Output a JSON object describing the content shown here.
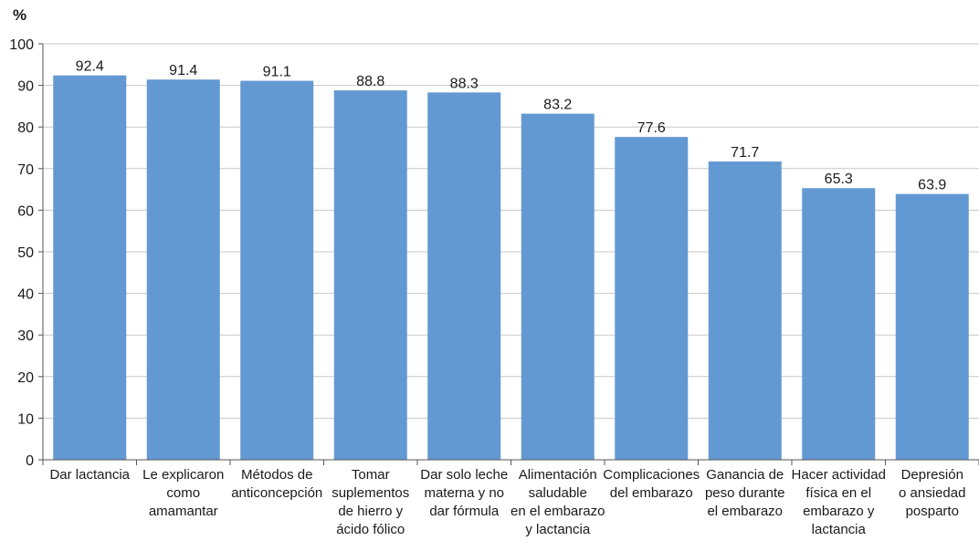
{
  "chart_data": {
    "type": "bar",
    "ylabel": "%",
    "ylim": [
      0,
      100
    ],
    "yticks": [
      0,
      10,
      20,
      30,
      40,
      50,
      60,
      70,
      80,
      90,
      100
    ],
    "grid": true,
    "bar_color": "#6399D2",
    "categories": [
      [
        "Dar lactancia"
      ],
      [
        "Le explicaron",
        "como",
        "amamantar"
      ],
      [
        "Métodos de",
        "anticoncepción"
      ],
      [
        "Tomar",
        "suplementos",
        "de hierro y",
        "ácido fólico"
      ],
      [
        "Dar solo leche",
        "materna y no",
        "dar fórmula"
      ],
      [
        "Alimentación",
        "saludable",
        "en el embarazo",
        "y lactancia"
      ],
      [
        "Complicaciones",
        "del embarazo"
      ],
      [
        "Ganancia de",
        "peso durante",
        "el embarazo"
      ],
      [
        "Hacer actividad",
        "física en el",
        "embarazo y",
        "lactancia"
      ],
      [
        "Depresión",
        "o ansiedad",
        "posparto"
      ]
    ],
    "values": [
      92.4,
      91.4,
      91.1,
      88.8,
      88.3,
      83.2,
      77.6,
      71.7,
      65.3,
      63.9
    ],
    "value_labels": [
      "92.4",
      "91.4",
      "91.1",
      "88.8",
      "88.3",
      "83.2",
      "77.6",
      "71.7",
      "65.3",
      "63.9"
    ]
  }
}
